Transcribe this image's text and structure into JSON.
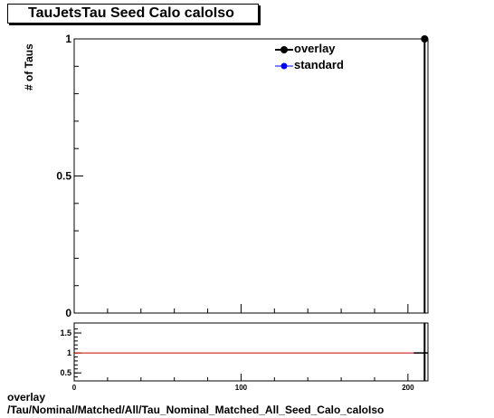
{
  "title": "TauJetsTau Seed Calo caloIso",
  "footer": {
    "line1": "overlay",
    "line2": "/Tau/Nominal/Matched/All/Tau_Nominal_Matched_All_Seed_Calo_caloIso"
  },
  "legend": {
    "overlay": "overlay",
    "standard": "standard"
  },
  "colors": {
    "overlay": "#000000",
    "standard": "#0000ff",
    "ratio_line": "#cc0000"
  },
  "chart_data": [
    {
      "type": "scatter",
      "title": "TauJetsTau Seed Calo caloIso",
      "ylabel": "# of Taus",
      "xlim": [
        0,
        212
      ],
      "ylim": [
        0,
        1
      ],
      "y_ticks": [
        {
          "value": 0,
          "label": "0"
        },
        {
          "value": 0.5,
          "label": "0.5"
        },
        {
          "value": 1,
          "label": "1"
        }
      ],
      "series": [
        {
          "name": "overlay",
          "x": [
            210
          ],
          "y": [
            1
          ]
        },
        {
          "name": "standard",
          "x": [
            210
          ],
          "y": [
            1
          ]
        }
      ]
    },
    {
      "type": "line",
      "xlim": [
        0,
        212
      ],
      "ylim": [
        0.3,
        1.75
      ],
      "x_ticks": [
        {
          "value": 0,
          "label": "0"
        },
        {
          "value": 100,
          "label": "100"
        },
        {
          "value": 200,
          "label": "200"
        }
      ],
      "y_ticks": [
        {
          "value": 0.5,
          "label": "0.5"
        },
        {
          "value": 1,
          "label": "1"
        },
        {
          "value": 1.5,
          "label": "1.5"
        }
      ],
      "reference_line": 1,
      "points": [
        {
          "x": 210,
          "y": 1
        }
      ]
    }
  ]
}
